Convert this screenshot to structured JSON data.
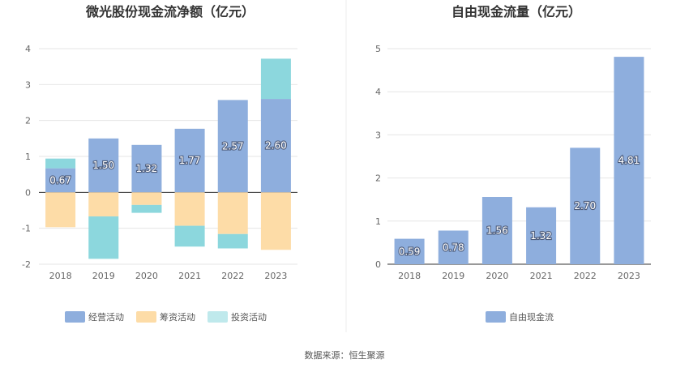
{
  "footer": {
    "source": "数据来源：恒生聚源"
  },
  "colors": {
    "operating": "#8eaedd",
    "financing": "#fddca7",
    "investing": "#8cd7dd",
    "investing_legend": "#bfe9ec",
    "free_cash_flow": "#8eaedd",
    "grid": "#e6e6e6",
    "axis": "#333333",
    "divider": "#eeeeee"
  },
  "chart_data": [
    {
      "type": "bar",
      "stacked": true,
      "title": "微光股份现金流净额（亿元）",
      "categories": [
        "2018",
        "2019",
        "2020",
        "2021",
        "2022",
        "2023"
      ],
      "ylim": [
        -2,
        4
      ],
      "yticks": [
        "-2",
        "-1",
        "0",
        "1",
        "2",
        "3",
        "4"
      ],
      "grid": true,
      "legend_position": "bottom",
      "series": [
        {
          "name": "经营活动",
          "values": [
            0.67,
            1.5,
            1.32,
            1.77,
            2.57,
            2.6
          ],
          "labels": [
            "0.67",
            "1.50",
            "1.32",
            "1.77",
            "2.57",
            "2.60"
          ]
        },
        {
          "name": "筹资活动",
          "values": [
            -0.97,
            -0.67,
            -0.35,
            -0.93,
            -1.16,
            -1.6
          ]
        },
        {
          "name": "投资活动",
          "values": [
            0.27,
            -1.18,
            -0.22,
            -0.58,
            -0.4,
            1.12
          ]
        }
      ]
    },
    {
      "type": "bar",
      "title": "自由现金流量（亿元）",
      "categories": [
        "2018",
        "2019",
        "2020",
        "2021",
        "2022",
        "2023"
      ],
      "ylim": [
        0,
        5
      ],
      "yticks": [
        "0",
        "1",
        "2",
        "3",
        "4",
        "5"
      ],
      "grid": true,
      "legend_position": "bottom",
      "series": [
        {
          "name": "自由现金流",
          "values": [
            0.59,
            0.78,
            1.56,
            1.32,
            2.7,
            4.81
          ],
          "labels": [
            "0.59",
            "0.78",
            "1.56",
            "1.32",
            "2.70",
            "4.81"
          ]
        }
      ]
    }
  ]
}
